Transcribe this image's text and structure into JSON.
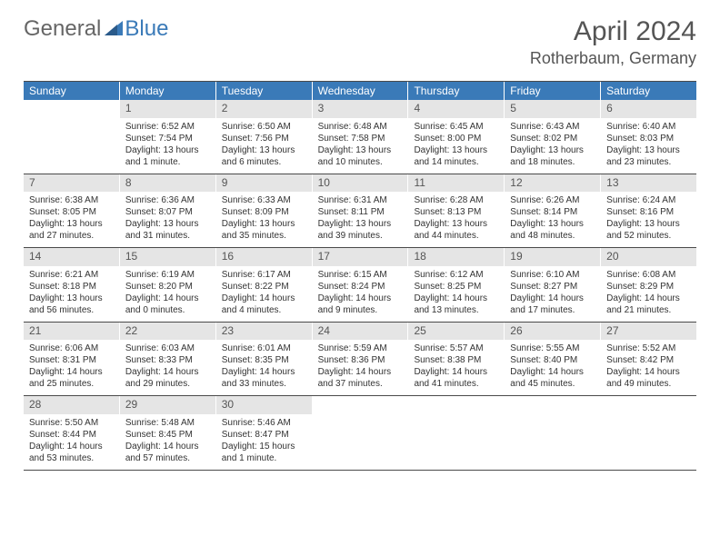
{
  "logo": {
    "text_general": "General",
    "text_blue": "Blue",
    "triangle_color": "#3a7ab8"
  },
  "title": "April 2024",
  "location": "Rotherbaum, Germany",
  "colors": {
    "header_bg": "#3a7ab8",
    "header_text": "#ffffff",
    "daynum_bg": "#e5e5e5",
    "daynum_text": "#555555",
    "text": "#333333",
    "border": "#4a4a4a"
  },
  "day_headers": [
    "Sunday",
    "Monday",
    "Tuesday",
    "Wednesday",
    "Thursday",
    "Friday",
    "Saturday"
  ],
  "weeks": [
    [
      null,
      {
        "num": "1",
        "sunrise": "Sunrise: 6:52 AM",
        "sunset": "Sunset: 7:54 PM",
        "daylight": "Daylight: 13 hours and 1 minute."
      },
      {
        "num": "2",
        "sunrise": "Sunrise: 6:50 AM",
        "sunset": "Sunset: 7:56 PM",
        "daylight": "Daylight: 13 hours and 6 minutes."
      },
      {
        "num": "3",
        "sunrise": "Sunrise: 6:48 AM",
        "sunset": "Sunset: 7:58 PM",
        "daylight": "Daylight: 13 hours and 10 minutes."
      },
      {
        "num": "4",
        "sunrise": "Sunrise: 6:45 AM",
        "sunset": "Sunset: 8:00 PM",
        "daylight": "Daylight: 13 hours and 14 minutes."
      },
      {
        "num": "5",
        "sunrise": "Sunrise: 6:43 AM",
        "sunset": "Sunset: 8:02 PM",
        "daylight": "Daylight: 13 hours and 18 minutes."
      },
      {
        "num": "6",
        "sunrise": "Sunrise: 6:40 AM",
        "sunset": "Sunset: 8:03 PM",
        "daylight": "Daylight: 13 hours and 23 minutes."
      }
    ],
    [
      {
        "num": "7",
        "sunrise": "Sunrise: 6:38 AM",
        "sunset": "Sunset: 8:05 PM",
        "daylight": "Daylight: 13 hours and 27 minutes."
      },
      {
        "num": "8",
        "sunrise": "Sunrise: 6:36 AM",
        "sunset": "Sunset: 8:07 PM",
        "daylight": "Daylight: 13 hours and 31 minutes."
      },
      {
        "num": "9",
        "sunrise": "Sunrise: 6:33 AM",
        "sunset": "Sunset: 8:09 PM",
        "daylight": "Daylight: 13 hours and 35 minutes."
      },
      {
        "num": "10",
        "sunrise": "Sunrise: 6:31 AM",
        "sunset": "Sunset: 8:11 PM",
        "daylight": "Daylight: 13 hours and 39 minutes."
      },
      {
        "num": "11",
        "sunrise": "Sunrise: 6:28 AM",
        "sunset": "Sunset: 8:13 PM",
        "daylight": "Daylight: 13 hours and 44 minutes."
      },
      {
        "num": "12",
        "sunrise": "Sunrise: 6:26 AM",
        "sunset": "Sunset: 8:14 PM",
        "daylight": "Daylight: 13 hours and 48 minutes."
      },
      {
        "num": "13",
        "sunrise": "Sunrise: 6:24 AM",
        "sunset": "Sunset: 8:16 PM",
        "daylight": "Daylight: 13 hours and 52 minutes."
      }
    ],
    [
      {
        "num": "14",
        "sunrise": "Sunrise: 6:21 AM",
        "sunset": "Sunset: 8:18 PM",
        "daylight": "Daylight: 13 hours and 56 minutes."
      },
      {
        "num": "15",
        "sunrise": "Sunrise: 6:19 AM",
        "sunset": "Sunset: 8:20 PM",
        "daylight": "Daylight: 14 hours and 0 minutes."
      },
      {
        "num": "16",
        "sunrise": "Sunrise: 6:17 AM",
        "sunset": "Sunset: 8:22 PM",
        "daylight": "Daylight: 14 hours and 4 minutes."
      },
      {
        "num": "17",
        "sunrise": "Sunrise: 6:15 AM",
        "sunset": "Sunset: 8:24 PM",
        "daylight": "Daylight: 14 hours and 9 minutes."
      },
      {
        "num": "18",
        "sunrise": "Sunrise: 6:12 AM",
        "sunset": "Sunset: 8:25 PM",
        "daylight": "Daylight: 14 hours and 13 minutes."
      },
      {
        "num": "19",
        "sunrise": "Sunrise: 6:10 AM",
        "sunset": "Sunset: 8:27 PM",
        "daylight": "Daylight: 14 hours and 17 minutes."
      },
      {
        "num": "20",
        "sunrise": "Sunrise: 6:08 AM",
        "sunset": "Sunset: 8:29 PM",
        "daylight": "Daylight: 14 hours and 21 minutes."
      }
    ],
    [
      {
        "num": "21",
        "sunrise": "Sunrise: 6:06 AM",
        "sunset": "Sunset: 8:31 PM",
        "daylight": "Daylight: 14 hours and 25 minutes."
      },
      {
        "num": "22",
        "sunrise": "Sunrise: 6:03 AM",
        "sunset": "Sunset: 8:33 PM",
        "daylight": "Daylight: 14 hours and 29 minutes."
      },
      {
        "num": "23",
        "sunrise": "Sunrise: 6:01 AM",
        "sunset": "Sunset: 8:35 PM",
        "daylight": "Daylight: 14 hours and 33 minutes."
      },
      {
        "num": "24",
        "sunrise": "Sunrise: 5:59 AM",
        "sunset": "Sunset: 8:36 PM",
        "daylight": "Daylight: 14 hours and 37 minutes."
      },
      {
        "num": "25",
        "sunrise": "Sunrise: 5:57 AM",
        "sunset": "Sunset: 8:38 PM",
        "daylight": "Daylight: 14 hours and 41 minutes."
      },
      {
        "num": "26",
        "sunrise": "Sunrise: 5:55 AM",
        "sunset": "Sunset: 8:40 PM",
        "daylight": "Daylight: 14 hours and 45 minutes."
      },
      {
        "num": "27",
        "sunrise": "Sunrise: 5:52 AM",
        "sunset": "Sunset: 8:42 PM",
        "daylight": "Daylight: 14 hours and 49 minutes."
      }
    ],
    [
      {
        "num": "28",
        "sunrise": "Sunrise: 5:50 AM",
        "sunset": "Sunset: 8:44 PM",
        "daylight": "Daylight: 14 hours and 53 minutes."
      },
      {
        "num": "29",
        "sunrise": "Sunrise: 5:48 AM",
        "sunset": "Sunset: 8:45 PM",
        "daylight": "Daylight: 14 hours and 57 minutes."
      },
      {
        "num": "30",
        "sunrise": "Sunrise: 5:46 AM",
        "sunset": "Sunset: 8:47 PM",
        "daylight": "Daylight: 15 hours and 1 minute."
      },
      null,
      null,
      null,
      null
    ]
  ]
}
